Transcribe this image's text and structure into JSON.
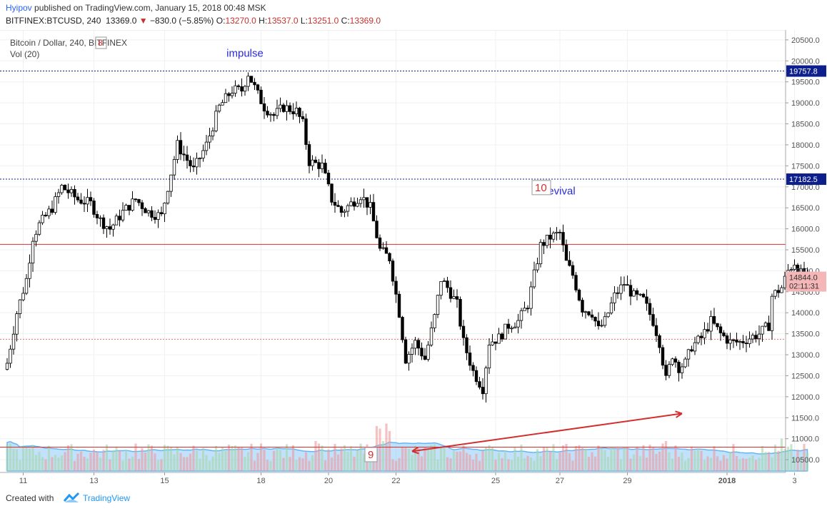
{
  "header": {
    "author": "Hyipov",
    "published_text": "published on TradingView.com, January 15, 2018 00:48 MSK",
    "symbol": "BITFINEX:BTCUSD, 240",
    "last_price": "13369.0",
    "change": "−830.0 (−5.85%)",
    "o_label": "O:",
    "o_value": "13270.0",
    "h_label": "H:",
    "h_value": "13537.0",
    "l_label": "L:",
    "l_value": "13251.0",
    "c_label": "C:",
    "c_value": "13369.0"
  },
  "pane": {
    "title": "Bitcoin / Dollar, 240, BITFINEX",
    "vol_label": "Vol (20)",
    "badge_8": "8"
  },
  "footer": {
    "created_with": "Created with",
    "brand": "TradingView"
  },
  "colors": {
    "up": "#ffffff",
    "down": "#000000",
    "line_red": "#d32f2f",
    "dotted_blue": "#0d1f8c",
    "vol_area": "#90caf9",
    "text_blue": "#2a2ad8"
  },
  "chart_data": {
    "type": "candlestick",
    "ylim": [
      10400,
      20600
    ],
    "y_ticks": [
      "20500.0",
      "20000.0",
      "19500.0",
      "19000.0",
      "18500.0",
      "18000.0",
      "17500.0",
      "17000.0",
      "16500.0",
      "16000.0",
      "15500.0",
      "15000.0",
      "14500.0",
      "14000.0",
      "13500.0",
      "13000.0",
      "12500.0",
      "12000.0",
      "11500.0",
      "11000.0",
      "10500.0"
    ],
    "x_ticks": [
      {
        "label": "11",
        "bar": 5
      },
      {
        "label": "13",
        "bar": 27
      },
      {
        "label": "15",
        "bar": 49
      },
      {
        "label": "18",
        "bar": 79
      },
      {
        "label": "20",
        "bar": 100
      },
      {
        "label": "22",
        "bar": 121
      },
      {
        "label": "25",
        "bar": 152
      },
      {
        "label": "27",
        "bar": 172
      },
      {
        "label": "29",
        "bar": 193
      },
      {
        "label": "2018",
        "bar": 224
      },
      {
        "label": "3",
        "bar": 245
      }
    ],
    "price_labels": [
      {
        "text": "19757.8",
        "value": 19757.8,
        "style": "dark"
      },
      {
        "text": "17182.5",
        "value": 17182.5,
        "style": "dark"
      },
      {
        "text": "14844.0",
        "value": 14844.0,
        "style": "light"
      },
      {
        "text": "02:11:31",
        "value": 14640.0,
        "style": "light"
      }
    ],
    "h_lines": [
      {
        "value": 19757.8,
        "style": "dotted",
        "color": "#0d1f8c"
      },
      {
        "value": 17182.5,
        "style": "dotted",
        "color": "#0d1f8c"
      },
      {
        "value": 15630.0,
        "style": "solid",
        "color": "#d32f2f"
      },
      {
        "value": 13369.0,
        "style": "dotted",
        "color": "#e57373"
      },
      {
        "value": 10800.0,
        "style": "solid",
        "color": "#d32f2f"
      }
    ],
    "annotations": [
      {
        "text": "impulse",
        "bar": 74,
        "price": 20100,
        "color": "#2a2ad8"
      },
      {
        "text": "revival",
        "bar": 172,
        "price": 16820,
        "color": "#2a2ad8"
      },
      {
        "text": "10",
        "bar": 164,
        "price": 16880,
        "boxed": true
      },
      {
        "text": "9",
        "bar": 112,
        "price": 10520,
        "boxed": true
      }
    ],
    "arrow": {
      "from_bar": 126,
      "from_price": 10700,
      "to_bar": 210,
      "to_price": 11600
    },
    "anchors": [
      [
        0,
        12800
      ],
      [
        3,
        14000
      ],
      [
        6,
        14800
      ],
      [
        8,
        15800
      ],
      [
        10,
        16100
      ],
      [
        14,
        16500
      ],
      [
        17,
        17000
      ],
      [
        22,
        16700
      ],
      [
        26,
        16600
      ],
      [
        29,
        16200
      ],
      [
        32,
        16000
      ],
      [
        36,
        16400
      ],
      [
        40,
        16700
      ],
      [
        44,
        16400
      ],
      [
        48,
        16300
      ],
      [
        50,
        17000
      ],
      [
        53,
        18000
      ],
      [
        58,
        17400
      ],
      [
        62,
        18000
      ],
      [
        66,
        18900
      ],
      [
        70,
        19300
      ],
      [
        73,
        19300
      ],
      [
        75,
        19700
      ],
      [
        78,
        19200
      ],
      [
        80,
        18900
      ],
      [
        83,
        18700
      ],
      [
        86,
        18900
      ],
      [
        90,
        18800
      ],
      [
        92,
        18500
      ],
      [
        94,
        17600
      ],
      [
        98,
        17500
      ],
      [
        101,
        16700
      ],
      [
        104,
        16400
      ],
      [
        107,
        16600
      ],
      [
        110,
        16800
      ],
      [
        113,
        16500
      ],
      [
        116,
        15500
      ],
      [
        119,
        15300
      ],
      [
        122,
        14000
      ],
      [
        124,
        12900
      ],
      [
        127,
        13300
      ],
      [
        130,
        12900
      ],
      [
        133,
        13900
      ],
      [
        135,
        14800
      ],
      [
        137,
        14600
      ],
      [
        140,
        14200
      ],
      [
        142,
        13300
      ],
      [
        145,
        12600
      ],
      [
        148,
        12200
      ],
      [
        150,
        13300
      ],
      [
        153,
        13400
      ],
      [
        156,
        13700
      ],
      [
        159,
        13800
      ],
      [
        162,
        14200
      ],
      [
        164,
        14900
      ],
      [
        166,
        15600
      ],
      [
        169,
        15800
      ],
      [
        172,
        15900
      ],
      [
        174,
        15200
      ],
      [
        176,
        14900
      ],
      [
        179,
        14100
      ],
      [
        182,
        14000
      ],
      [
        184,
        13600
      ],
      [
        186,
        13800
      ],
      [
        189,
        14400
      ],
      [
        192,
        14700
      ],
      [
        195,
        14400
      ],
      [
        198,
        14300
      ],
      [
        201,
        13800
      ],
      [
        203,
        13300
      ],
      [
        205,
        12400
      ],
      [
        207,
        13000
      ],
      [
        209,
        12700
      ],
      [
        211,
        12800
      ],
      [
        213,
        13200
      ],
      [
        216,
        13400
      ],
      [
        219,
        13800
      ],
      [
        222,
        13500
      ],
      [
        225,
        13300
      ],
      [
        228,
        13300
      ],
      [
        231,
        13400
      ],
      [
        234,
        13500
      ],
      [
        237,
        13700
      ],
      [
        238,
        14400
      ],
      [
        241,
        14600
      ],
      [
        243,
        15000
      ],
      [
        245,
        15200
      ],
      [
        248,
        14800
      ],
      [
        249,
        14844
      ]
    ],
    "volume_ylim": [
      0,
      1
    ]
  }
}
